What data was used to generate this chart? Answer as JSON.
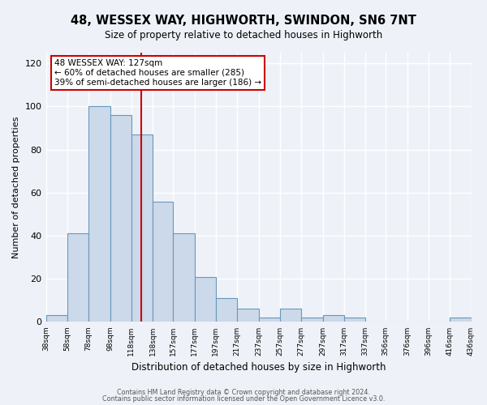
{
  "title": "48, WESSEX WAY, HIGHWORTH, SWINDON, SN6 7NT",
  "subtitle": "Size of property relative to detached houses in Highworth",
  "xlabel": "Distribution of detached houses by size in Highworth",
  "ylabel": "Number of detached properties",
  "bar_color": "#ccd9ea",
  "bar_edge_color": "#6699bb",
  "background_color": "#eef2f8",
  "grid_color": "#ffffff",
  "property_line_x": 127,
  "annotation_line1": "48 WESSEX WAY: 127sqm",
  "annotation_line2": "← 60% of detached houses are smaller (285)",
  "annotation_line3": "39% of semi-detached houses are larger (186) →",
  "annotation_box_color": "#ffffff",
  "annotation_box_edge_color": "#cc0000",
  "footer_line1": "Contains HM Land Registry data © Crown copyright and database right 2024.",
  "footer_line2": "Contains public sector information licensed under the Open Government Licence v3.0.",
  "bin_edges": [
    38,
    58,
    78,
    98,
    118,
    138,
    157,
    177,
    197,
    217,
    237,
    257,
    277,
    297,
    317,
    337,
    356,
    376,
    396,
    416,
    436
  ],
  "bin_counts": [
    3,
    41,
    100,
    96,
    87,
    56,
    41,
    21,
    11,
    6,
    2,
    6,
    2,
    3,
    2,
    0,
    0,
    0,
    0,
    2
  ],
  "ylim": [
    0,
    125
  ],
  "yticks": [
    0,
    20,
    40,
    60,
    80,
    100,
    120
  ]
}
